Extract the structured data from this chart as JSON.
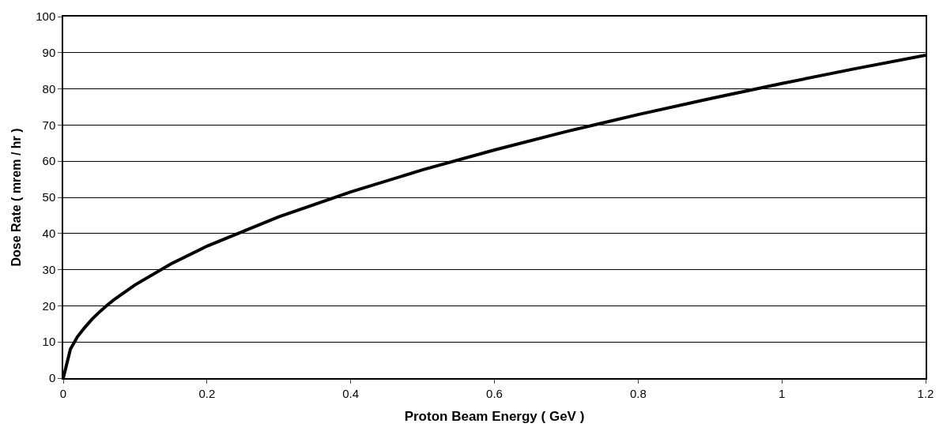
{
  "chart_data": {
    "type": "line",
    "xlabel": "Proton Beam Energy ( GeV )",
    "ylabel": "Dose Rate ( mrem / hr )",
    "x": [
      0,
      0.01,
      0.02,
      0.03,
      0.04,
      0.05,
      0.06,
      0.07,
      0.08,
      0.1,
      0.15,
      0.2,
      0.3,
      0.4,
      0.5,
      0.6,
      0.7,
      0.8,
      0.9,
      1.0,
      1.1,
      1.2
    ],
    "series": [
      {
        "color": "#000000",
        "values": [
          0,
          8,
          11.5,
          14,
          16.3,
          18.2,
          20,
          21.6,
          23,
          25.8,
          31.6,
          36.5,
          44.6,
          51.5,
          57.6,
          63.1,
          68.2,
          72.9,
          77.3,
          81.5,
          85.5,
          89.3
        ]
      }
    ],
    "xlim": [
      0,
      1.2
    ],
    "xticks": [
      0,
      0.2,
      0.4,
      0.6,
      0.8,
      1,
      1.2
    ],
    "ylim": [
      0,
      100
    ],
    "yticks": [
      0,
      10,
      20,
      30,
      40,
      50,
      60,
      70,
      80,
      90,
      100
    ],
    "grid": "y",
    "marker": "none",
    "line_style": "solid"
  }
}
